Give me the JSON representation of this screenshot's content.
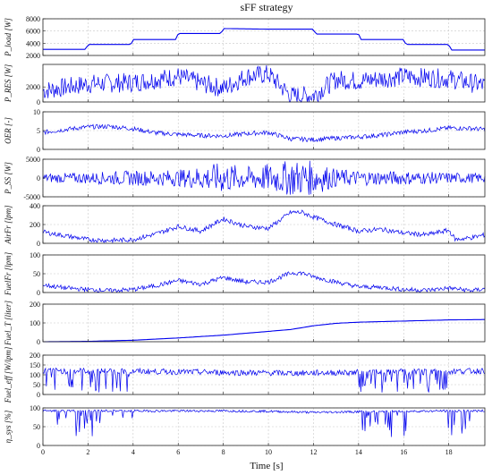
{
  "figure": {
    "title": "sFF strategy",
    "xlabel": "Time [s]"
  },
  "colors": {
    "line": "#0000ee",
    "grid": "#c8c8c8",
    "frame": "#222222"
  },
  "chart_data": [
    {
      "type": "line",
      "panel": "P_load",
      "ylabel": "P_load [W]",
      "ylim": [
        2000,
        8000
      ],
      "yticks": [
        2000,
        4000,
        6000,
        8000
      ],
      "xlim": [
        0,
        19.6
      ],
      "xticks": [
        0,
        2,
        4,
        6,
        8,
        10,
        12,
        14,
        16,
        18
      ],
      "grid": true,
      "series": [
        {
          "x": [
            0,
            1.9,
            2.0,
            3.9,
            4.0,
            5.9,
            6.0,
            7.9,
            8.0,
            10.0,
            12.0,
            12.1,
            14.0,
            14.1,
            16.0,
            16.1,
            18.0,
            18.1,
            19.6
          ],
          "values": [
            3000,
            3000,
            3800,
            3800,
            4600,
            4600,
            5600,
            5600,
            6400,
            6300,
            6300,
            5500,
            5500,
            4600,
            4600,
            3800,
            3800,
            2900,
            2900
          ]
        }
      ]
    },
    {
      "type": "line",
      "panel": "P_RES",
      "ylabel": "P_RES [W]",
      "ylim": [
        0,
        5000
      ],
      "yticks": [
        0,
        2000
      ],
      "xlim": [
        0,
        19.6
      ],
      "xticks": [
        0,
        2,
        4,
        6,
        8,
        10,
        12,
        14,
        16,
        18
      ],
      "grid": true,
      "noise": 1300,
      "series": [
        {
          "x": [
            0,
            2,
            4,
            5,
            6,
            7,
            8,
            9,
            10,
            11,
            12,
            13,
            14,
            16,
            18,
            19.6
          ],
          "values": [
            1500,
            2400,
            2600,
            3000,
            3400,
            2500,
            1800,
            3400,
            3700,
            800,
            900,
            3000,
            2800,
            3400,
            3100,
            2200
          ]
        }
      ]
    },
    {
      "type": "line",
      "panel": "OER",
      "ylabel": "OER [-]",
      "ylim": [
        0,
        10
      ],
      "yticks": [
        0,
        5,
        10
      ],
      "xlim": [
        0,
        19.6
      ],
      "xticks": [
        0,
        2,
        4,
        6,
        8,
        10,
        12,
        14,
        16,
        18
      ],
      "grid": true,
      "noise": 0.6,
      "series": [
        {
          "x": [
            0,
            1,
            2,
            3,
            4,
            5,
            6,
            7,
            8,
            9,
            10,
            11,
            12,
            13,
            14,
            15,
            16,
            17,
            18,
            19,
            19.6
          ],
          "values": [
            4.5,
            5.3,
            6.0,
            6.1,
            5.5,
            4.4,
            4.0,
            3.7,
            3.6,
            4.2,
            4.5,
            2.8,
            2.6,
            3.0,
            3.3,
            3.8,
            4.6,
            5.0,
            5.7,
            5.6,
            5.3
          ]
        }
      ]
    },
    {
      "type": "line",
      "panel": "P_SS",
      "ylabel": "P_SS [W]",
      "ylim": [
        -5000,
        5000
      ],
      "yticks": [
        -5000,
        0,
        5000
      ],
      "xlim": [
        0,
        19.6
      ],
      "xticks": [
        0,
        2,
        4,
        6,
        8,
        10,
        12,
        14,
        16,
        18
      ],
      "grid": true,
      "noise": 1,
      "series": [
        {
          "x": [
            0,
            2,
            4,
            6,
            8,
            9,
            10,
            11,
            12,
            13,
            14,
            16,
            18,
            19.6
          ],
          "values": [
            1200,
            1500,
            2000,
            2200,
            4200,
            3000,
            3800,
            4800,
            4600,
            2400,
            2000,
            1800,
            1500,
            1200
          ]
        }
      ]
    },
    {
      "type": "line",
      "panel": "AirFr",
      "ylabel": "AirFr [lpm]",
      "ylim": [
        0,
        400
      ],
      "yticks": [
        0,
        200,
        400
      ],
      "xlim": [
        0,
        19.6
      ],
      "xticks": [
        0,
        2,
        4,
        6,
        8,
        10,
        12,
        14,
        16,
        18
      ],
      "grid": true,
      "noise": 25,
      "series": [
        {
          "x": [
            0,
            1,
            2,
            3,
            4,
            5,
            6,
            7,
            8,
            9,
            10,
            11,
            11.5,
            12,
            13,
            14,
            15,
            16,
            17,
            18,
            18.3,
            19,
            19.6
          ],
          "values": [
            120,
            80,
            40,
            30,
            40,
            100,
            180,
            130,
            260,
            180,
            160,
            330,
            330,
            280,
            200,
            130,
            150,
            110,
            90,
            140,
            40,
            60,
            90
          ]
        }
      ]
    },
    {
      "type": "line",
      "panel": "FuelFr",
      "ylabel": "FuelFr [lpm]",
      "ylim": [
        0,
        100
      ],
      "yticks": [
        0,
        50,
        100
      ],
      "xlim": [
        0,
        19.6
      ],
      "xticks": [
        0,
        2,
        4,
        6,
        8,
        10,
        12,
        14,
        16,
        18
      ],
      "grid": true,
      "noise": 6,
      "series": [
        {
          "x": [
            0,
            1,
            2,
            3,
            4,
            5,
            6,
            7,
            8,
            9,
            10,
            11,
            11.5,
            12,
            13,
            14,
            15,
            16,
            17,
            18,
            19,
            19.6
          ],
          "values": [
            20,
            12,
            8,
            5,
            8,
            18,
            32,
            22,
            40,
            28,
            28,
            52,
            52,
            42,
            28,
            15,
            14,
            8,
            6,
            12,
            5,
            10
          ]
        }
      ]
    },
    {
      "type": "line",
      "panel": "Fuel_T",
      "ylabel": "Fuel_T [liter]",
      "ylim": [
        0,
        200
      ],
      "yticks": [
        0,
        100,
        200
      ],
      "xlim": [
        0,
        19.6
      ],
      "xticks": [
        0,
        2,
        4,
        6,
        8,
        10,
        12,
        14,
        16,
        18
      ],
      "grid": true,
      "noise": 0,
      "series": [
        {
          "x": [
            0,
            2,
            4,
            6,
            8,
            10,
            11,
            12,
            13,
            14,
            16,
            18,
            19.6
          ],
          "values": [
            0,
            2,
            8,
            20,
            35,
            55,
            65,
            85,
            98,
            104,
            110,
            116,
            118
          ]
        }
      ]
    },
    {
      "type": "line",
      "panel": "Fuel_eff",
      "ylabel": "Fuel_eff [W/lpm]",
      "ylim": [
        0,
        200
      ],
      "yticks": [
        0,
        50,
        100,
        150,
        200
      ],
      "xlim": [
        0,
        19.6
      ],
      "xticks": [
        0,
        2,
        4,
        6,
        8,
        10,
        12,
        14,
        16,
        18
      ],
      "grid": true,
      "noise": 15,
      "series": [
        {
          "x": [
            0,
            4,
            6,
            8,
            10,
            11,
            12,
            14,
            16,
            18,
            19.6
          ],
          "values": [
            120,
            118,
            115,
            112,
            110,
            108,
            110,
            112,
            115,
            118,
            120
          ]
        }
      ]
    },
    {
      "type": "line",
      "panel": "eta_sys",
      "ylabel": "η_sys [%]",
      "ylim": [
        0,
        100
      ],
      "yticks": [
        0,
        50,
        100
      ],
      "xlim": [
        0,
        19.6
      ],
      "xticks": [
        0,
        2,
        4,
        6,
        8,
        10,
        12,
        14,
        16,
        18
      ],
      "grid": true,
      "noise": 3,
      "series": [
        {
          "x": [
            0,
            4,
            8,
            10,
            12,
            14,
            16,
            18,
            19.6
          ],
          "values": [
            92,
            92,
            92,
            91,
            88,
            90,
            91,
            92,
            92
          ]
        }
      ]
    }
  ]
}
